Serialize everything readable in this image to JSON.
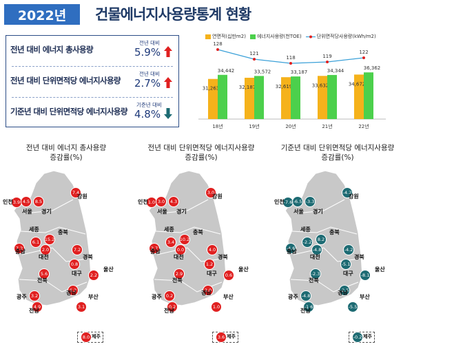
{
  "header": {
    "year_badge": "2022년",
    "title": "건물에너지사용량통계 현황"
  },
  "summary": [
    {
      "label": "전년 대비 에너지 총사용량",
      "sub": "전년 대비",
      "value": "5.9%",
      "trend": "up",
      "color": "#e02020"
    },
    {
      "label": "전년 대비 단위면적당 에너지사용량",
      "sub": "전년 대비",
      "value": "2.7%",
      "trend": "up",
      "color": "#e02020"
    },
    {
      "label": "기준년 대비 단위면적당 에너지사용량",
      "sub": "기준년 대비",
      "value": "4.8%",
      "trend": "down",
      "color": "#1d6b73"
    }
  ],
  "chart_data": {
    "type": "bar",
    "categories": [
      "18년",
      "19년",
      "20년",
      "21년",
      "22년"
    ],
    "series": [
      {
        "name": "연면적(십만m2)",
        "type": "bar",
        "color": "#f5b21b",
        "values": [
          31263,
          32187,
          32619,
          33632,
          34672
        ]
      },
      {
        "name": "에너지사용량(천TOE)",
        "type": "bar",
        "color": "#4cd04c",
        "values": [
          34442,
          33572,
          33187,
          34344,
          36362
        ]
      },
      {
        "name": "단위면적당사용량(kWh/m2)",
        "type": "line",
        "color": "#3aa0d8",
        "values": [
          128,
          121,
          118,
          119,
          122
        ]
      }
    ]
  },
  "maps": [
    {
      "title1": "전년 대비 에너지 총사용량",
      "title2": "증감률(%)",
      "color": "red",
      "values": [
        "3.9",
        "4.5",
        "8.5",
        "7.4",
        "6.1",
        "15.2",
        "7.2",
        "2.0",
        "7.2",
        "0.8",
        "5.6",
        "2.2",
        "6.2",
        "3.2",
        "3.1",
        "4.9",
        "8.0"
      ]
    },
    {
      "title1": "전년 대비 단위면적당 에너지사용량",
      "title2": "증감률(%)",
      "color": "red",
      "values": [
        "1.0",
        "3.0",
        "4.3",
        "3.0",
        "3.4",
        "10.2",
        "2.7",
        "0.0",
        "4.0",
        "1.2",
        "2.9",
        "0.6",
        "2.0",
        "0.2",
        "1.0",
        "0.2",
        "3.6"
      ]
    },
    {
      "title1": "기준년 대비 단위면적당 에너지사용량",
      "title2": "증감률(%)",
      "color": "teal",
      "values": [
        "-7.6",
        "-6.5",
        "-3.3",
        "-4.2",
        "-2.2",
        "8.2",
        "-4.6",
        "-4.8",
        "-4.2",
        "-5.1",
        "-2.3",
        "-8.1",
        "-2.5",
        "-4.8",
        "-5.5",
        "-1.6",
        "-0.2"
      ]
    }
  ],
  "regions": [
    "인천",
    "서울",
    "경기",
    "강원",
    "세종",
    "충북",
    "충남",
    "대전",
    "경북",
    "대구",
    "전북",
    "울산",
    "경남",
    "광주",
    "부산",
    "전남",
    "제주"
  ]
}
